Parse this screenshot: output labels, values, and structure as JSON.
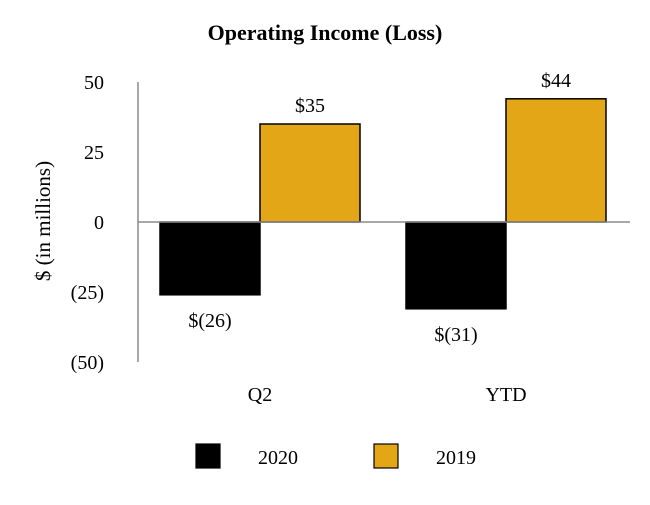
{
  "chart_data": {
    "type": "bar",
    "title": "Operating Income (Loss)",
    "xlabel": "",
    "ylabel": "$ (in millions)",
    "ylim": [
      -50,
      50
    ],
    "yticks": [
      50,
      25,
      0,
      -25,
      -50
    ],
    "ytick_labels": [
      "50",
      "25",
      "0",
      "(25)",
      "(50)"
    ],
    "grid": false,
    "categories": [
      "Q2",
      "YTD"
    ],
    "series": [
      {
        "name": "2020",
        "color": "#000000",
        "values": [
          -26,
          -31
        ],
        "labels": [
          "$(26)",
          "$(31)"
        ]
      },
      {
        "name": "2019",
        "color": "#E2A616",
        "values": [
          35,
          44
        ],
        "labels": [
          "$35",
          "$44"
        ]
      }
    ],
    "legend_position": "bottom-center"
  }
}
